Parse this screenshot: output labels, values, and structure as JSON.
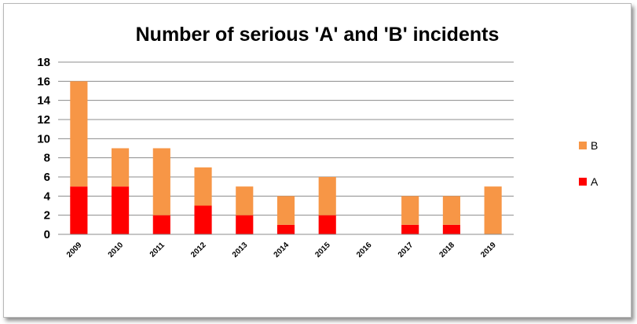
{
  "chart_data": {
    "type": "bar",
    "stacked": true,
    "title": "Number of serious 'A' and 'B' incidents",
    "xlabel": "",
    "ylabel": "",
    "ylim": [
      0,
      18
    ],
    "yticks": [
      0,
      2,
      4,
      6,
      8,
      10,
      12,
      14,
      16,
      18
    ],
    "grid": true,
    "legend_position": "right",
    "categories": [
      "2009",
      "2010",
      "2011",
      "2012",
      "2013",
      "2014",
      "2015",
      "2016",
      "2017",
      "2018",
      "2019"
    ],
    "series": [
      {
        "name": "A",
        "color": "#ff0000",
        "values": [
          5,
          5,
          2,
          3,
          2,
          1,
          2,
          0,
          1,
          1,
          0
        ]
      },
      {
        "name": "B",
        "color": "#f79646",
        "values": [
          11,
          4,
          7,
          4,
          3,
          3,
          4,
          0,
          3,
          3,
          5
        ]
      }
    ]
  }
}
